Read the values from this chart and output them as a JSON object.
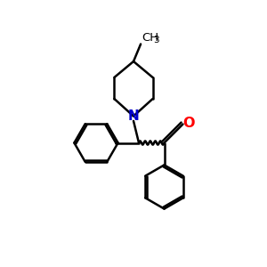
{
  "background_color": "#ffffff",
  "bond_color": "#000000",
  "nitrogen_color": "#0000cc",
  "oxygen_color": "#ff0000",
  "line_width": 1.8,
  "figsize": [
    3.0,
    3.0
  ],
  "dpi": 100,
  "xlim": [
    0,
    10
  ],
  "ylim": [
    0,
    10
  ]
}
